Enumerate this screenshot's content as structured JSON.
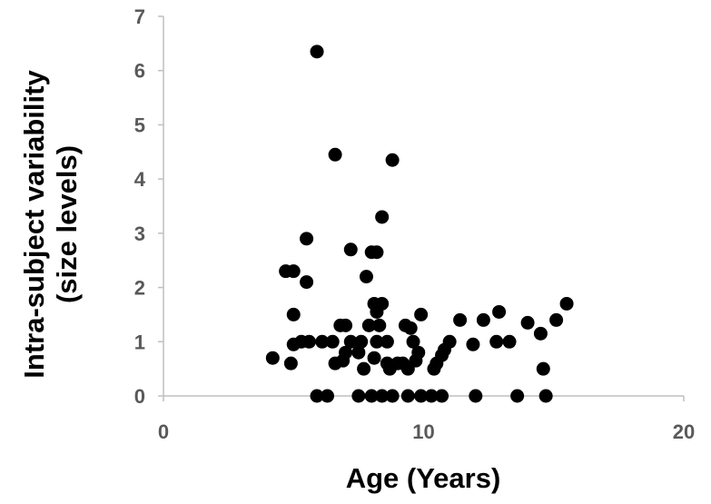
{
  "chart_data": {
    "type": "scatter",
    "xlabel": "Age (Years)",
    "ylabel_lines": [
      "Intra-subject variability",
      "(size levels)"
    ],
    "xlim": [
      0,
      20
    ],
    "ylim": [
      0,
      7
    ],
    "x_ticks": [
      0,
      10,
      20
    ],
    "y_ticks": [
      0,
      1,
      2,
      3,
      4,
      5,
      6,
      7
    ],
    "grid": false,
    "legend": "none",
    "marker_color": "#000000",
    "axis_color": "#bfbfbf",
    "tick_label_color": "#595959",
    "points": [
      [
        4.2,
        0.7
      ],
      [
        4.7,
        2.3
      ],
      [
        4.9,
        0.6
      ],
      [
        5.0,
        2.3
      ],
      [
        5.0,
        1.5
      ],
      [
        5.0,
        0.95
      ],
      [
        5.3,
        1.0
      ],
      [
        5.5,
        2.9
      ],
      [
        5.5,
        2.1
      ],
      [
        5.6,
        1.0
      ],
      [
        5.9,
        6.35
      ],
      [
        5.9,
        0.0
      ],
      [
        6.1,
        1.0
      ],
      [
        6.3,
        0.0
      ],
      [
        6.5,
        1.0
      ],
      [
        6.6,
        4.45
      ],
      [
        6.6,
        0.6
      ],
      [
        6.8,
        1.3
      ],
      [
        6.9,
        0.65
      ],
      [
        7.0,
        1.3
      ],
      [
        7.0,
        0.8
      ],
      [
        7.2,
        2.7
      ],
      [
        7.2,
        1.0
      ],
      [
        7.5,
        0.0
      ],
      [
        7.5,
        0.8
      ],
      [
        7.6,
        1.0
      ],
      [
        7.7,
        0.5
      ],
      [
        7.8,
        2.2
      ],
      [
        7.9,
        1.3
      ],
      [
        8.0,
        2.65
      ],
      [
        8.0,
        0.0
      ],
      [
        8.1,
        1.7
      ],
      [
        8.1,
        0.7
      ],
      [
        8.2,
        1.55
      ],
      [
        8.2,
        2.65
      ],
      [
        8.2,
        1.0
      ],
      [
        8.3,
        1.3
      ],
      [
        8.4,
        3.3
      ],
      [
        8.4,
        1.7
      ],
      [
        8.4,
        0.0
      ],
      [
        8.6,
        0.6
      ],
      [
        8.6,
        1.0
      ],
      [
        8.7,
        0.5
      ],
      [
        8.8,
        4.35
      ],
      [
        8.8,
        0.0
      ],
      [
        9.0,
        0.6
      ],
      [
        9.2,
        0.6
      ],
      [
        9.3,
        1.3
      ],
      [
        9.4,
        0.5
      ],
      [
        9.4,
        0.0
      ],
      [
        9.5,
        1.25
      ],
      [
        9.6,
        1.0
      ],
      [
        9.7,
        0.65
      ],
      [
        9.8,
        0.8
      ],
      [
        9.9,
        1.5
      ],
      [
        9.9,
        0.0
      ],
      [
        10.3,
        0.0
      ],
      [
        10.4,
        0.5
      ],
      [
        10.5,
        0.6
      ],
      [
        10.7,
        0.75
      ],
      [
        10.7,
        0.0
      ],
      [
        10.8,
        0.85
      ],
      [
        11.0,
        1.0
      ],
      [
        11.4,
        1.4
      ],
      [
        11.9,
        0.95
      ],
      [
        12.0,
        0.0
      ],
      [
        12.3,
        1.4
      ],
      [
        12.8,
        1.0
      ],
      [
        12.9,
        1.55
      ],
      [
        13.3,
        1.0
      ],
      [
        13.6,
        0.0
      ],
      [
        14.0,
        1.35
      ],
      [
        14.5,
        1.15
      ],
      [
        14.6,
        0.5
      ],
      [
        14.7,
        0.0
      ],
      [
        15.1,
        1.4
      ],
      [
        15.5,
        1.7
      ]
    ]
  }
}
